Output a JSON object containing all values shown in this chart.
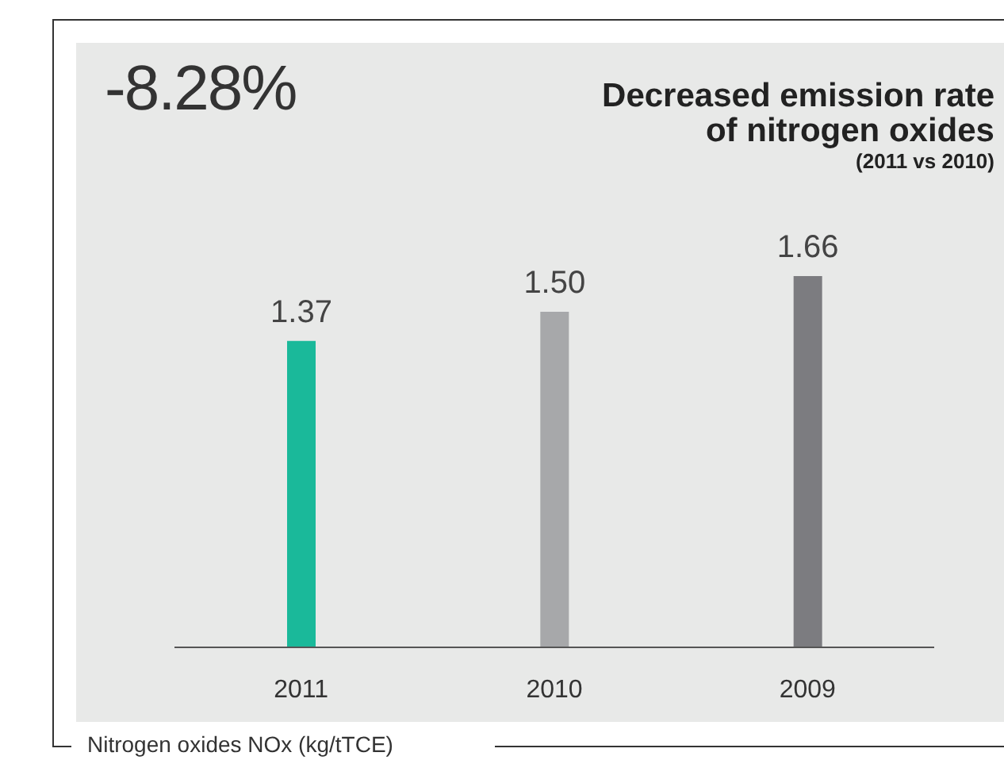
{
  "chart_data": {
    "type": "bar",
    "title": "Decreased emission rate of nitrogen oxides",
    "subtitle": "(2011 vs 2010)",
    "categories": [
      "2011",
      "2010",
      "2009"
    ],
    "values": [
      1.37,
      1.5,
      1.66
    ],
    "colors": [
      "#1ab99a",
      "#a7a8aa",
      "#7c7c80"
    ],
    "value_labels": [
      "1.37",
      "1.50",
      "1.66"
    ],
    "annotations": [
      "-8.28%",
      "Nitrogen oxides NOx (kg/tTCE)"
    ]
  }
}
